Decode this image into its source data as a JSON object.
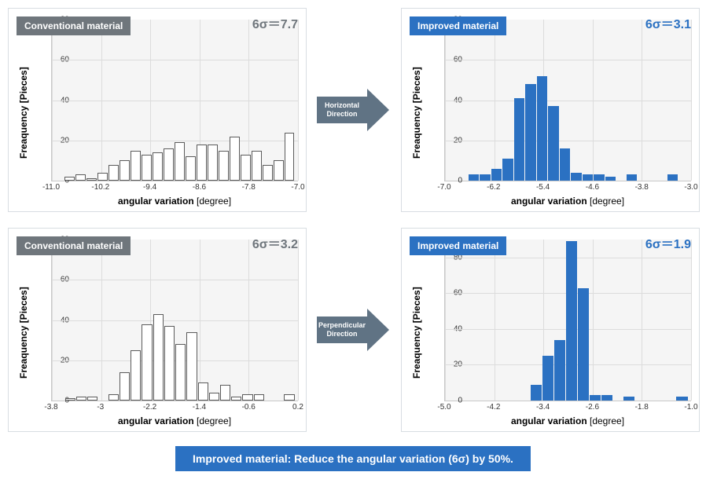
{
  "colors": {
    "accent_blue": "#2b71c2",
    "tag_gray": "#6f767c",
    "arrow_fill": "#607384",
    "panel_border": "#d8dde2",
    "plot_bg": "#f5f5f5",
    "grid": "#dcdcdc",
    "bar_border": "#5b5b5b"
  },
  "labels": {
    "conventional": "Conventional material",
    "improved": "Improved material",
    "ylabel": "Freaquency [Pieces]",
    "xlabel": "angular variation",
    "xunit": "[degree]",
    "horizontal": "Horizontal\nDirection",
    "perpendicular": "Perpendicular\nDirection",
    "footer": "Improved material: Reduce the angular variation (6σ) by 50%."
  },
  "charts": {
    "tl": {
      "sigma": "6σ＝7.7",
      "ymax": 80,
      "ytick_step": 20,
      "xticks": [
        "-11.0",
        "-10.2",
        "-9.4",
        "-8.6",
        "-7.8",
        "-7.0"
      ],
      "values": [
        0,
        2,
        3,
        1,
        4,
        8,
        10,
        15,
        13,
        14,
        16,
        19,
        12,
        18,
        18,
        15,
        22,
        13,
        15,
        8,
        10,
        24
      ],
      "fill": "white"
    },
    "tr": {
      "sigma": "6σ＝3.1",
      "ymax": 80,
      "ytick_step": 20,
      "xticks": [
        "-7.0",
        "-6.2",
        "-5.4",
        "-4.6",
        "-3.8",
        "-3.0"
      ],
      "values": [
        0,
        0,
        3,
        3,
        6,
        11,
        41,
        48,
        52,
        37,
        16,
        4,
        3,
        3,
        2,
        0,
        3,
        0,
        0,
        0,
        3,
        0
      ],
      "fill": "blue"
    },
    "bl": {
      "sigma": "6σ＝3.2",
      "ymax": 80,
      "ytick_step": 20,
      "xticks": [
        "-3.8",
        "-3",
        "-2.2",
        "-1.4",
        "-0.6",
        "0.2"
      ],
      "values": [
        0,
        1,
        2,
        2,
        0,
        3,
        14,
        25,
        38,
        43,
        37,
        28,
        34,
        9,
        4,
        8,
        2,
        3,
        3,
        0,
        0,
        3
      ],
      "fill": "white"
    },
    "br": {
      "sigma": "6σ＝1.9",
      "ymax": 90,
      "ytick_step": 20,
      "xticks": [
        "-5.0",
        "-4.2",
        "-3.4",
        "-2.6",
        "-1.8",
        "-1.0"
      ],
      "values": [
        0,
        0,
        0,
        0,
        0,
        0,
        0,
        0,
        9,
        25,
        34,
        89,
        63,
        3,
        3,
        0,
        2,
        0,
        0,
        0,
        0,
        2
      ],
      "fill": "blue"
    }
  }
}
